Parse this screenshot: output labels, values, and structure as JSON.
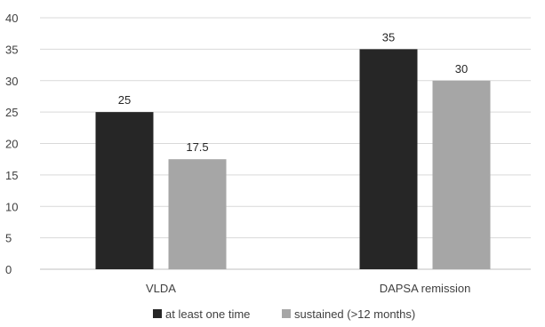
{
  "chart_data": {
    "type": "bar",
    "categories": [
      "VLDA",
      "DAPSA remission"
    ],
    "series": [
      {
        "name": "at least one time",
        "values": [
          25,
          35
        ],
        "color": "#262626"
      },
      {
        "name": "sustained (>12 months)",
        "values": [
          17.5,
          30
        ],
        "color": "#a6a6a6"
      }
    ],
    "ylim": [
      0,
      40
    ],
    "yticks": [
      0,
      5,
      10,
      15,
      20,
      25,
      30,
      35,
      40
    ],
    "grid": true,
    "legend_position": "bottom",
    "data_labels": [
      "25",
      "35",
      "17.5",
      "30"
    ],
    "title": "",
    "xlabel": "",
    "ylabel": ""
  }
}
